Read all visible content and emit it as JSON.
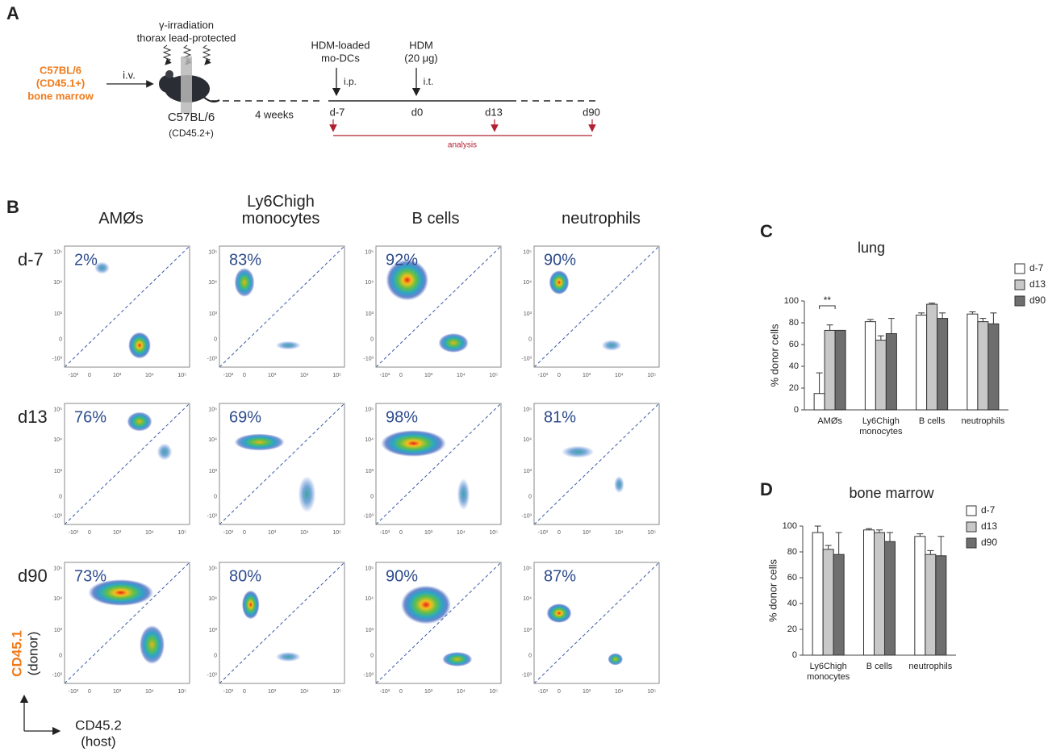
{
  "panel_a": {
    "label": "A",
    "donor": [
      "C57BL/6",
      "(CD45.1+)",
      "bone marrow"
    ],
    "route": "i.v.",
    "irradiation": [
      "γ-irradiation",
      "thorax lead-protected"
    ],
    "recipient": [
      "C57BL/6",
      "(CD45.2+)"
    ],
    "interval": "4 weeks",
    "injection_1": {
      "text": [
        "HDM-loaded",
        "mo-DCs"
      ],
      "route": "i.p."
    },
    "injection_2": {
      "text": [
        "HDM",
        "(20 μg)"
      ],
      "route": "i.t."
    },
    "timepoints": [
      "d-7",
      "d0",
      "d13",
      "d90"
    ],
    "analysis": "analysis"
  },
  "panel_b": {
    "label": "B",
    "columns": [
      "AMØs",
      "Ly6Chigh monocytes",
      "B cells",
      "neutrophils"
    ],
    "rows": [
      "d-7",
      "d13",
      "d90"
    ],
    "percentages": [
      [
        "2%",
        "83%",
        "92%",
        "90%"
      ],
      [
        "76%",
        "69%",
        "98%",
        "81%"
      ],
      [
        "73%",
        "80%",
        "90%",
        "87%"
      ]
    ],
    "axis_ticks": [
      "-10³",
      "0",
      "10³",
      "10⁴",
      "10⁵"
    ],
    "y_axis_label": [
      "CD45.1",
      "(donor)"
    ],
    "x_axis_label": [
      "CD45.2",
      "(host)"
    ]
  },
  "chart_data": [
    {
      "panel": "C",
      "type": "bar",
      "title": "lung",
      "ylabel": "% donor cells",
      "categories": [
        "AMØs",
        "Ly6Chigh monocytes",
        "B cells",
        "neutrophils"
      ],
      "series": [
        {
          "name": "d-7",
          "color": "#ffffff",
          "values": [
            15,
            81,
            87,
            88
          ],
          "errors": [
            19,
            2,
            2,
            2
          ]
        },
        {
          "name": "d13",
          "color": "#c8c8c8",
          "values": [
            73,
            64,
            97,
            81
          ],
          "errors": [
            5,
            4,
            1,
            3
          ]
        },
        {
          "name": "d90",
          "color": "#6e6e6e",
          "values": [
            73,
            70,
            84,
            79
          ],
          "errors": [
            0,
            14,
            5,
            10
          ]
        }
      ],
      "ylim": [
        0,
        100
      ],
      "yticks": [
        0,
        20,
        40,
        60,
        80,
        100
      ],
      "annotation": "**"
    },
    {
      "panel": "D",
      "type": "bar",
      "title": "bone marrow",
      "ylabel": "% donor cells",
      "categories": [
        "Ly6Chigh monocytes",
        "B cells",
        "neutrophils"
      ],
      "series": [
        {
          "name": "d-7",
          "color": "#ffffff",
          "values": [
            95,
            97,
            92
          ],
          "errors": [
            5,
            1,
            2
          ]
        },
        {
          "name": "d13",
          "color": "#c8c8c8",
          "values": [
            82,
            95,
            78
          ],
          "errors": [
            3,
            2,
            3
          ]
        },
        {
          "name": "d90",
          "color": "#6e6e6e",
          "values": [
            78,
            88,
            77
          ],
          "errors": [
            17,
            7,
            15
          ]
        }
      ],
      "ylim": [
        0,
        100
      ],
      "yticks": [
        0,
        20,
        40,
        60,
        80,
        100
      ]
    }
  ]
}
